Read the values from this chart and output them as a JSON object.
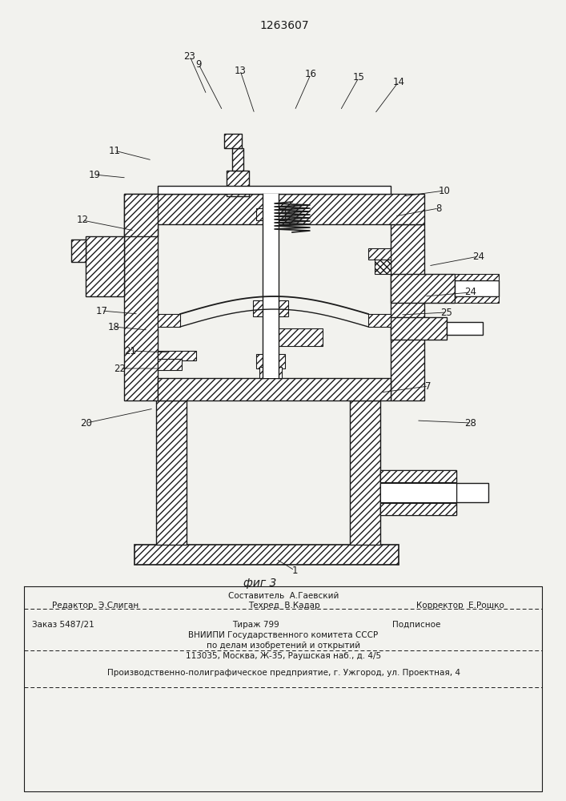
{
  "patent_number": "1263607",
  "figure_label": "фиг 3",
  "background_color": "#f2f2ee",
  "line_color": "#1a1a1a",
  "text_color": "#1a1a1a",
  "footer": {
    "line1_center": "Составитель  А.Гаевский",
    "line2_left": "Редактор  Э.Слиган",
    "line2_center": "Техред  В.Кадар",
    "line2_right": "Корректор  Е.Рошко",
    "line3_left": "Заказ 5487/21",
    "line3_center": "Тираж 799",
    "line3_right": "Подписное",
    "line4": "ВНИИПИ Государственного комитета СССР",
    "line5": "по делам изобретений и открытий",
    "line6": "113035, Москва, Ж-35, Раушская наб., д. 4/5",
    "line7": "Производственно-полиграфическое предприятие, г. Ужгород, ул. Проектная, 4"
  }
}
